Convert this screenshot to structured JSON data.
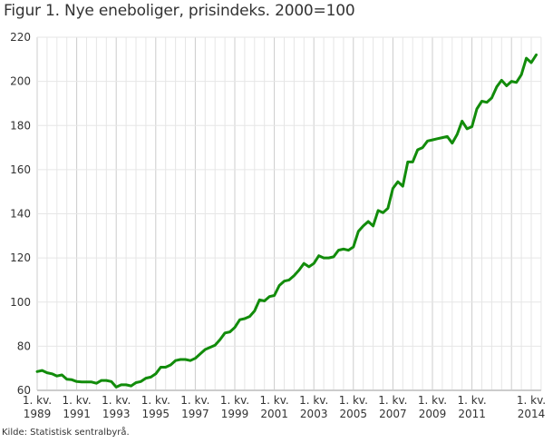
{
  "title": "Figur 1. Nye eneboliger, prisindeks. 2000=100",
  "source": "Kilde: Statistisk sentralbyrå.",
  "colors": {
    "line": "#128c0b",
    "grid_minor": "#e6e6e6",
    "grid_major": "#cccccc",
    "axis": "#cccccc"
  },
  "chart_data": {
    "type": "line",
    "title": "Figur 1. Nye eneboliger, prisindeks. 2000=100",
    "xlabel": "",
    "ylabel": "",
    "ylim": [
      60,
      220
    ],
    "yticks": [
      60,
      80,
      100,
      120,
      140,
      160,
      180,
      200,
      220
    ],
    "xticks": [
      {
        "q": 0,
        "line1": "1. kv.",
        "line2": "1989"
      },
      {
        "q": 8,
        "line1": "1. kv.",
        "line2": "1991"
      },
      {
        "q": 16,
        "line1": "1. kv.",
        "line2": "1993"
      },
      {
        "q": 24,
        "line1": "1. kv.",
        "line2": "1995"
      },
      {
        "q": 32,
        "line1": "1. kv.",
        "line2": "1997"
      },
      {
        "q": 40,
        "line1": "1. kv.",
        "line2": "1999"
      },
      {
        "q": 48,
        "line1": "1. kv.",
        "line2": "2001"
      },
      {
        "q": 56,
        "line1": "1. kv.",
        "line2": "2003"
      },
      {
        "q": 64,
        "line1": "1. kv.",
        "line2": "2005"
      },
      {
        "q": 72,
        "line1": "1. kv.",
        "line2": "2007"
      },
      {
        "q": 80,
        "line1": "1. kv.",
        "line2": "2009"
      },
      {
        "q": 88,
        "line1": "1. kv.",
        "line2": "2011"
      },
      {
        "q": 100,
        "line1": "1. kv.",
        "line2": "2014"
      }
    ],
    "grid": true,
    "legend": null,
    "series": [
      {
        "name": "Prisindeks, nye eneboliger",
        "start": "1989K1",
        "frequency": "quarterly",
        "values": [
          68.5,
          69,
          68,
          67.5,
          66.5,
          67,
          65,
          64.8,
          64,
          63.8,
          63.8,
          63.8,
          63.2,
          64.5,
          64.5,
          64,
          61.5,
          62.5,
          62.5,
          62,
          63.5,
          64,
          65.5,
          66,
          67.5,
          70.5,
          70.5,
          71.5,
          73.5,
          74,
          74,
          73.5,
          74.5,
          76.5,
          78.5,
          79.5,
          80.5,
          83,
          86,
          86.5,
          88.5,
          92,
          92.5,
          93.5,
          96,
          101,
          100.5,
          102.5,
          103,
          107.5,
          109.5,
          110,
          112,
          114.5,
          117.5,
          116,
          117.5,
          121,
          120,
          120,
          120.5,
          123.5,
          124,
          123.5,
          125,
          132,
          134.5,
          136.5,
          134.5,
          141.5,
          140.5,
          142.5,
          151.5,
          154.5,
          152.5,
          163.5,
          163.5,
          169,
          170,
          173,
          173.5,
          174,
          174.5,
          175,
          172,
          176,
          182,
          178.5,
          179.5,
          187.5,
          191,
          190.5,
          192.5,
          197.5,
          200.5,
          198,
          200,
          199.5,
          203,
          210.5,
          208.5,
          212
        ]
      }
    ]
  }
}
